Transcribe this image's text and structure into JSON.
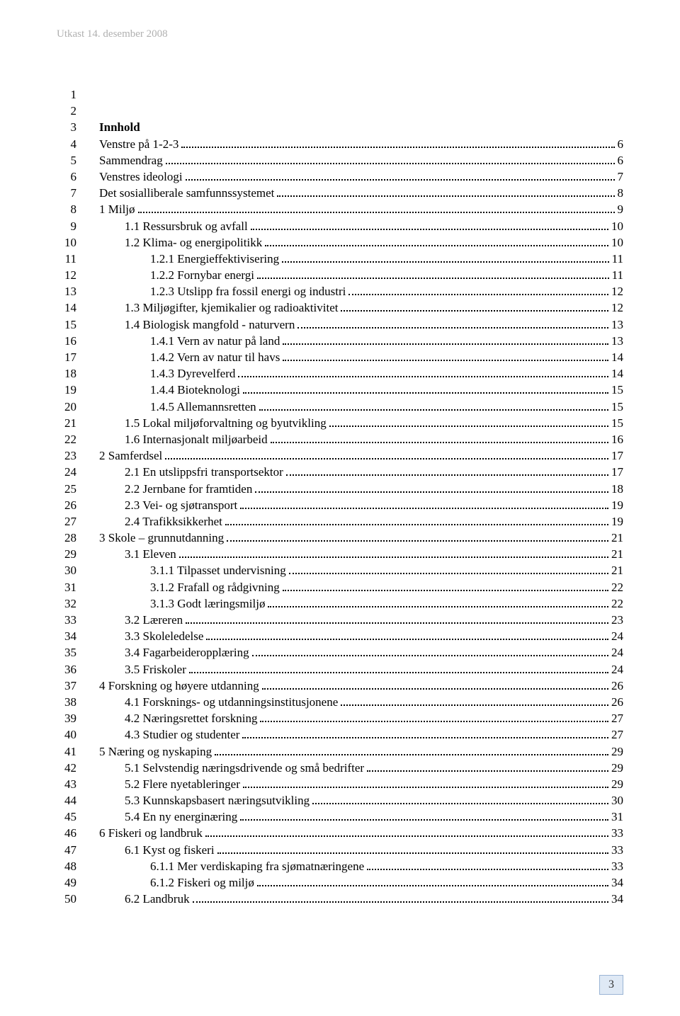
{
  "draft_header": "Utkast 14. desember 2008",
  "line_numbers": [
    "1",
    "2",
    "3",
    "4",
    "5",
    "6",
    "7",
    "8",
    "9",
    "10",
    "11",
    "12",
    "13",
    "14",
    "15",
    "16",
    "17",
    "18",
    "19",
    "20",
    "21",
    "22",
    "23",
    "24",
    "25",
    "26",
    "27",
    "28",
    "29",
    "30",
    "31",
    "32",
    "33",
    "34",
    "35",
    "36",
    "37",
    "38",
    "39",
    "40",
    "41",
    "42",
    "43",
    "44",
    "45",
    "46",
    "47",
    "48",
    "49",
    "50"
  ],
  "toc_title": "Innhold",
  "toc": [
    {
      "label": "Venstre på 1-2-3",
      "page": "6",
      "indent": 0
    },
    {
      "label": "Sammendrag",
      "page": "6",
      "indent": 0
    },
    {
      "label": "Venstres ideologi",
      "page": "7",
      "indent": 0
    },
    {
      "label": "Det sosialliberale samfunnssystemet",
      "page": "8",
      "indent": 0
    },
    {
      "label": "1    Miljø",
      "page": "9",
      "indent": 0
    },
    {
      "label": "1.1    Ressursbruk og avfall",
      "page": "10",
      "indent": 1
    },
    {
      "label": "1.2    Klima- og energipolitikk",
      "page": "10",
      "indent": 1
    },
    {
      "label": "1.2.1    Energieffektivisering",
      "page": "11",
      "indent": 2
    },
    {
      "label": "1.2.2    Fornybar energi",
      "page": "11",
      "indent": 2
    },
    {
      "label": "1.2.3    Utslipp fra fossil energi og industri",
      "page": "12",
      "indent": 2
    },
    {
      "label": "1.3    Miljøgifter, kjemikalier og radioaktivitet",
      "page": "12",
      "indent": 1
    },
    {
      "label": "1.4    Biologisk mangfold - naturvern",
      "page": "13",
      "indent": 1
    },
    {
      "label": "1.4.1    Vern av natur på land",
      "page": "13",
      "indent": 2
    },
    {
      "label": "1.4.2    Vern av natur til havs",
      "page": "14",
      "indent": 2
    },
    {
      "label": "1.4.3    Dyrevelferd",
      "page": "14",
      "indent": 2
    },
    {
      "label": "1.4.4    Bioteknologi",
      "page": "15",
      "indent": 2
    },
    {
      "label": "1.4.5    Allemannsretten",
      "page": "15",
      "indent": 2
    },
    {
      "label": "1.5    Lokal miljøforvaltning og byutvikling",
      "page": "15",
      "indent": 1
    },
    {
      "label": "1.6    Internasjonalt miljøarbeid",
      "page": "16",
      "indent": 1
    },
    {
      "label": "2    Samferdsel",
      "page": "17",
      "indent": 0
    },
    {
      "label": "2.1    En utslippsfri transportsektor",
      "page": "17",
      "indent": 1
    },
    {
      "label": "2.2    Jernbane for framtiden",
      "page": "18",
      "indent": 1
    },
    {
      "label": "2.3    Vei- og sjøtransport",
      "page": "19",
      "indent": 1
    },
    {
      "label": "2.4    Trafikksikkerhet",
      "page": "19",
      "indent": 1
    },
    {
      "label": "3    Skole – grunnutdanning",
      "page": "21",
      "indent": 0
    },
    {
      "label": "3.1    Eleven",
      "page": "21",
      "indent": 1
    },
    {
      "label": "3.1.1    Tilpasset undervisning",
      "page": "21",
      "indent": 2
    },
    {
      "label": "3.1.2    Frafall og rådgivning",
      "page": "22",
      "indent": 2
    },
    {
      "label": "3.1.3    Godt læringsmiljø",
      "page": "22",
      "indent": 2
    },
    {
      "label": "3.2    Læreren",
      "page": "23",
      "indent": 1
    },
    {
      "label": "3.3    Skoleledelse",
      "page": "24",
      "indent": 1
    },
    {
      "label": "3.4    Fagarbeideropplæring",
      "page": "24",
      "indent": 1
    },
    {
      "label": "3.5    Friskoler",
      "page": "24",
      "indent": 1
    },
    {
      "label": "4    Forskning og høyere utdanning",
      "page": "26",
      "indent": 0
    },
    {
      "label": "4.1    Forsknings- og utdanningsinstitusjonene",
      "page": "26",
      "indent": 1
    },
    {
      "label": "4.2    Næringsrettet forskning",
      "page": "27",
      "indent": 1
    },
    {
      "label": "4.3    Studier og studenter",
      "page": "27",
      "indent": 1
    },
    {
      "label": "5    Næring og nyskaping",
      "page": "29",
      "indent": 0
    },
    {
      "label": "5.1    Selvstendig næringsdrivende og små bedrifter",
      "page": "29",
      "indent": 1
    },
    {
      "label": "5.2    Flere nyetableringer",
      "page": "29",
      "indent": 1
    },
    {
      "label": "5.3    Kunnskapsbasert næringsutvikling",
      "page": "30",
      "indent": 1
    },
    {
      "label": "5.4    En ny energinæring",
      "page": "31",
      "indent": 1
    },
    {
      "label": "6    Fiskeri og landbruk",
      "page": "33",
      "indent": 0
    },
    {
      "label": "6.1    Kyst og fiskeri",
      "page": "33",
      "indent": 1
    },
    {
      "label": "6.1.1    Mer verdiskaping fra sjømatnæringene",
      "page": "33",
      "indent": 2
    },
    {
      "label": "6.1.2    Fiskeri og miljø",
      "page": "34",
      "indent": 2
    },
    {
      "label": "6.2    Landbruk",
      "page": "34",
      "indent": 1
    }
  ],
  "page_number": "3",
  "colors": {
    "draft_header": "#b0b0b0",
    "text": "#000000",
    "page_box_bg": "#dfe9f5",
    "page_box_border": "#9ab4d4"
  }
}
